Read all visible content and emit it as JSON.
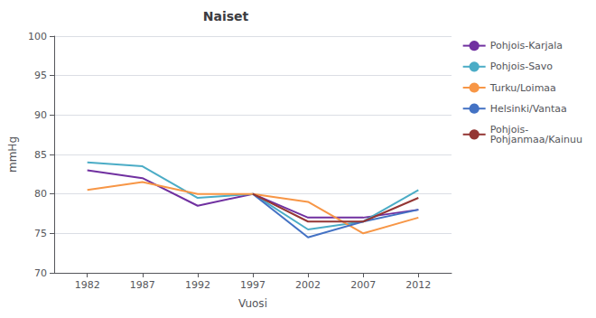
{
  "chart_data": {
    "type": "line",
    "title": "Naiset",
    "x_label": "Vuosi",
    "y_label": "mmHg",
    "x": [
      1982,
      1987,
      1992,
      1997,
      2002,
      2007,
      2012
    ],
    "series": [
      {
        "name": "Pohjois-Karjala",
        "color": "#7030A0",
        "values": [
          83.0,
          82.0,
          78.5,
          80.0,
          77.0,
          77.0,
          78.0
        ]
      },
      {
        "name": "Pohjois-Savo",
        "color": "#4BACC6",
        "values": [
          84.0,
          83.5,
          79.5,
          80.0,
          75.5,
          76.5,
          80.5
        ]
      },
      {
        "name": "Turku/Loimaa",
        "color": "#F79646",
        "values": [
          80.5,
          81.5,
          80.0,
          80.0,
          79.0,
          75.0,
          77.0
        ]
      },
      {
        "name": "Helsinki/Vantaa",
        "color": "#4472C4",
        "values": [
          null,
          null,
          null,
          80.0,
          74.5,
          76.5,
          78.0
        ]
      },
      {
        "name": "Pohjois-\nPohjanmaa/Kainuu",
        "color": "#943634",
        "values": [
          null,
          null,
          null,
          80.0,
          76.5,
          76.5,
          79.5
        ]
      }
    ],
    "xlim": [
      1979,
      2015
    ],
    "xticks": [
      1982,
      1987,
      1992,
      1997,
      2002,
      2007,
      2012
    ],
    "ylim": [
      70,
      100
    ],
    "yticks": [
      70,
      75,
      80,
      85,
      90,
      95,
      100
    ],
    "grid": true,
    "legend": "right"
  }
}
